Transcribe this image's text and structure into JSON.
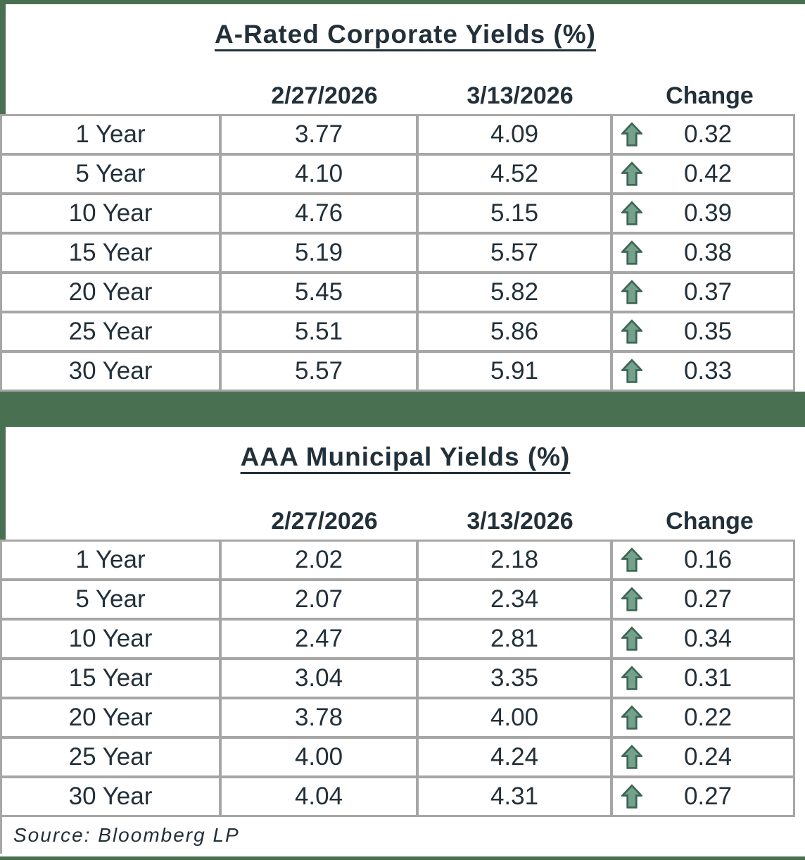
{
  "colors": {
    "accent_green": "#4a7052",
    "border_gray": "#a6a6a6",
    "text": "#22303a",
    "arrow_fill": "#74a18b",
    "arrow_outline": "#3d6554"
  },
  "tables": [
    {
      "title": "A-Rated Corporate Yields (%)",
      "columns": [
        "2/27/2026",
        "3/13/2026",
        "Change"
      ],
      "rows": [
        {
          "label": "1 Year",
          "v1": "3.77",
          "v2": "4.09",
          "change": "0.32",
          "direction": "up"
        },
        {
          "label": "5 Year",
          "v1": "4.10",
          "v2": "4.52",
          "change": "0.42",
          "direction": "up"
        },
        {
          "label": "10 Year",
          "v1": "4.76",
          "v2": "5.15",
          "change": "0.39",
          "direction": "up"
        },
        {
          "label": "15 Year",
          "v1": "5.19",
          "v2": "5.57",
          "change": "0.38",
          "direction": "up"
        },
        {
          "label": "20 Year",
          "v1": "5.45",
          "v2": "5.82",
          "change": "0.37",
          "direction": "up"
        },
        {
          "label": "25 Year",
          "v1": "5.51",
          "v2": "5.86",
          "change": "0.35",
          "direction": "up"
        },
        {
          "label": "30 Year",
          "v1": "5.57",
          "v2": "5.91",
          "change": "0.33",
          "direction": "up"
        }
      ]
    },
    {
      "title": "AAA Municipal Yields (%)",
      "columns": [
        "2/27/2026",
        "3/13/2026",
        "Change"
      ],
      "rows": [
        {
          "label": "1 Year",
          "v1": "2.02",
          "v2": "2.18",
          "change": "0.16",
          "direction": "up"
        },
        {
          "label": "5 Year",
          "v1": "2.07",
          "v2": "2.34",
          "change": "0.27",
          "direction": "up"
        },
        {
          "label": "10 Year",
          "v1": "2.47",
          "v2": "2.81",
          "change": "0.34",
          "direction": "up"
        },
        {
          "label": "15 Year",
          "v1": "3.04",
          "v2": "3.35",
          "change": "0.31",
          "direction": "up"
        },
        {
          "label": "20 Year",
          "v1": "3.78",
          "v2": "4.00",
          "change": "0.22",
          "direction": "up"
        },
        {
          "label": "25 Year",
          "v1": "4.00",
          "v2": "4.24",
          "change": "0.24",
          "direction": "up"
        },
        {
          "label": "30 Year",
          "v1": "4.04",
          "v2": "4.31",
          "change": "0.27",
          "direction": "up"
        }
      ]
    }
  ],
  "source": "Source: Bloomberg LP"
}
